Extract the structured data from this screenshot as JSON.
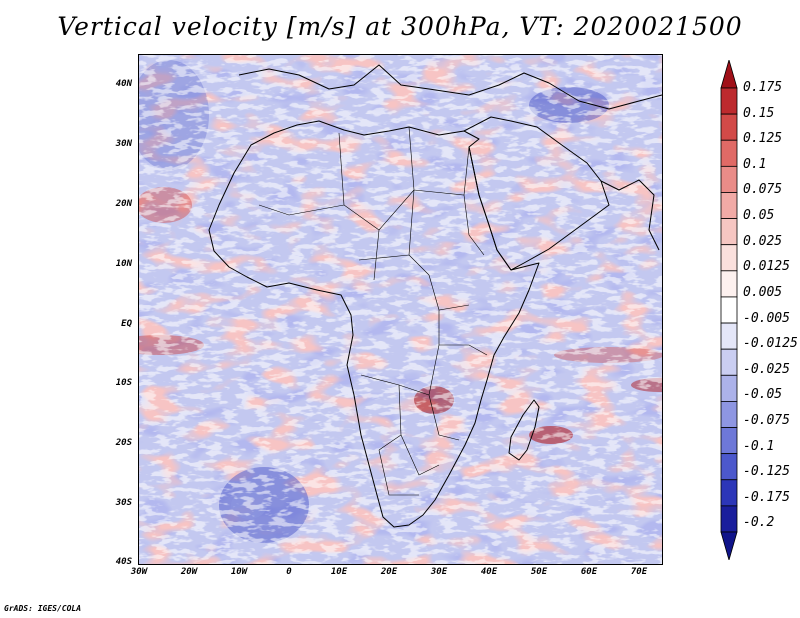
{
  "title": "Vertical velocity [m/s] at 300hPa, VT: 2020021500",
  "map": {
    "lat_labels": [
      "40N",
      "30N",
      "20N",
      "10N",
      "EQ",
      "10S",
      "20S",
      "30S",
      "40S"
    ],
    "lon_labels": [
      "30W",
      "20W",
      "10W",
      "0",
      "10E",
      "20E",
      "30E",
      "40E",
      "50E",
      "60E",
      "70E"
    ],
    "extent": {
      "lon_min": -30,
      "lon_max": 75,
      "lat_min": -40,
      "lat_max": 45
    }
  },
  "colorbar": {
    "labels": [
      "0.175",
      "0.15",
      "0.125",
      "0.1",
      "0.075",
      "0.05",
      "0.025",
      "0.0125",
      "0.005",
      "-0.005",
      "-0.0125",
      "-0.025",
      "-0.05",
      "-0.075",
      "-0.1",
      "-0.125",
      "-0.175",
      "-0.2"
    ],
    "colors": [
      "#a01018",
      "#bd2a2e",
      "#d24a48",
      "#e06a66",
      "#ea8c88",
      "#f1aaa6",
      "#f6c6c2",
      "#fae0dd",
      "#fdf1ef",
      "#ffffff",
      "#e4e6f8",
      "#cacef2",
      "#acb2ea",
      "#8e96e2",
      "#6e78d8",
      "#4c58cc",
      "#2c36b8",
      "#1a1e9c",
      "#10148a"
    ]
  },
  "credit": "GrADS: IGES/COLA"
}
